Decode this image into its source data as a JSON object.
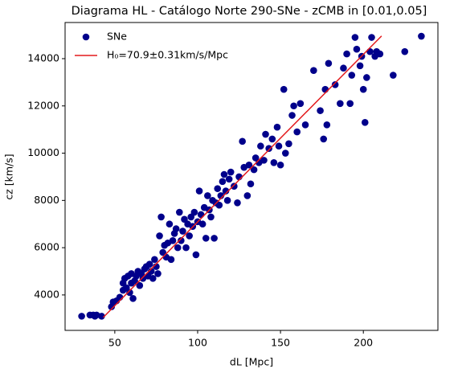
{
  "chart_data": {
    "type": "scatter",
    "title": "Diagrama HL - Catálogo Norte 290-SNe - zCMB in [0.01,0.05]",
    "x_label": "dL [Mpc]",
    "y_label": "cz [km/s]",
    "xlim": [
      20,
      245
    ],
    "ylim": [
      2500,
      15530
    ],
    "xticks": [
      50,
      100,
      150,
      200
    ],
    "yticks": [
      4000,
      6000,
      8000,
      10000,
      12000,
      14000
    ],
    "legend": "upper left",
    "grid": false,
    "series": [
      {
        "name": "SNe",
        "type": "scatter",
        "color": "#00008b",
        "x": [
          30,
          35,
          37,
          39,
          42,
          38,
          48,
          49,
          51,
          53,
          55,
          55,
          56,
          57,
          58,
          59,
          60,
          60,
          61,
          62,
          63,
          64,
          65,
          66,
          67,
          68,
          69,
          70,
          71,
          72,
          73,
          74,
          75,
          76,
          77,
          78,
          79,
          80,
          81,
          82,
          83,
          84,
          85,
          86,
          87,
          88,
          89,
          90,
          91,
          92,
          93,
          94,
          95,
          96,
          97,
          98,
          99,
          100,
          101,
          102,
          103,
          104,
          105,
          106,
          107,
          108,
          109,
          110,
          111,
          112,
          113,
          114,
          115,
          116,
          117,
          118,
          119,
          120,
          122,
          124,
          125,
          127,
          128,
          130,
          131,
          132,
          134,
          135,
          137,
          138,
          140,
          141,
          143,
          145,
          146,
          148,
          149,
          150,
          152,
          153,
          155,
          157,
          158,
          160,
          162,
          165,
          170,
          174,
          176,
          177,
          178,
          179,
          183,
          186,
          188,
          190,
          192,
          193,
          195,
          196,
          198,
          199,
          200,
          201,
          202,
          204,
          205,
          207,
          208,
          210,
          218,
          225,
          235
        ],
        "values": [
          3100,
          3150,
          3150,
          3150,
          3100,
          3100,
          3500,
          3700,
          3750,
          3900,
          4200,
          4500,
          4700,
          4300,
          4800,
          4100,
          4500,
          4900,
          3850,
          4600,
          4800,
          5000,
          4400,
          4900,
          4700,
          5100,
          5200,
          4800,
          5300,
          5000,
          4700,
          5500,
          5200,
          4900,
          6500,
          7300,
          5800,
          6100,
          5600,
          6200,
          7000,
          5500,
          6300,
          6600,
          6800,
          6000,
          7500,
          6300,
          6700,
          7200,
          6000,
          7000,
          6500,
          7300,
          6900,
          7500,
          5700,
          7100,
          8400,
          7400,
          7000,
          7700,
          6400,
          8200,
          7600,
          7300,
          8000,
          6400,
          7900,
          8500,
          7800,
          8200,
          8800,
          9100,
          8400,
          8000,
          8900,
          9200,
          8600,
          7900,
          9000,
          10500,
          9400,
          8200,
          9500,
          8700,
          9300,
          9800,
          9600,
          10300,
          9700,
          10800,
          10200,
          10600,
          9600,
          11100,
          10300,
          9500,
          12700,
          10000,
          10400,
          11600,
          12000,
          10900,
          12100,
          11200,
          13500,
          11800,
          10600,
          12700,
          11200,
          13800,
          12900,
          12100,
          13600,
          14200,
          12100,
          13300,
          14900,
          14400,
          13700,
          14100,
          12700,
          11300,
          13200,
          14300,
          14900,
          14100,
          14300,
          14200,
          13300,
          14300,
          14950
        ]
      },
      {
        "name": "H₀=70.9±0.31km/s/Mpc",
        "type": "line",
        "color": "#e31a1c",
        "x": [
          43,
          211
        ],
        "values": [
          3049,
          14960
        ]
      }
    ]
  }
}
